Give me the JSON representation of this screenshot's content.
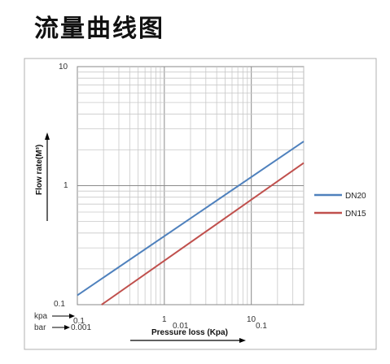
{
  "page": {
    "title": "流量曲线图"
  },
  "chart_data": {
    "type": "line",
    "x_scale": "log",
    "y_scale": "log",
    "xlabel": "Pressure loss (Kpa)",
    "ylabel": "Flow rate(M³)",
    "xlim": [
      0.1,
      40
    ],
    "ylim": [
      0.1,
      10
    ],
    "grid": true,
    "legend_position": "right",
    "x_ticks_kpa": [
      "0.1",
      "1",
      "10"
    ],
    "x_ticks_bar": [
      "0.001",
      "0.01",
      "0.1"
    ],
    "x_row_labels": {
      "kpa": "kpa",
      "bar": "bar"
    },
    "y_ticks": [
      "0.1",
      "1",
      "10"
    ],
    "series": [
      {
        "name": "DN20",
        "color": "#4f81bd",
        "x": [
          0.1,
          40
        ],
        "y": [
          0.12,
          2.35
        ]
      },
      {
        "name": "DN15",
        "color": "#c0504d",
        "x": [
          0.19,
          40
        ],
        "y": [
          0.1,
          1.55
        ]
      }
    ]
  }
}
